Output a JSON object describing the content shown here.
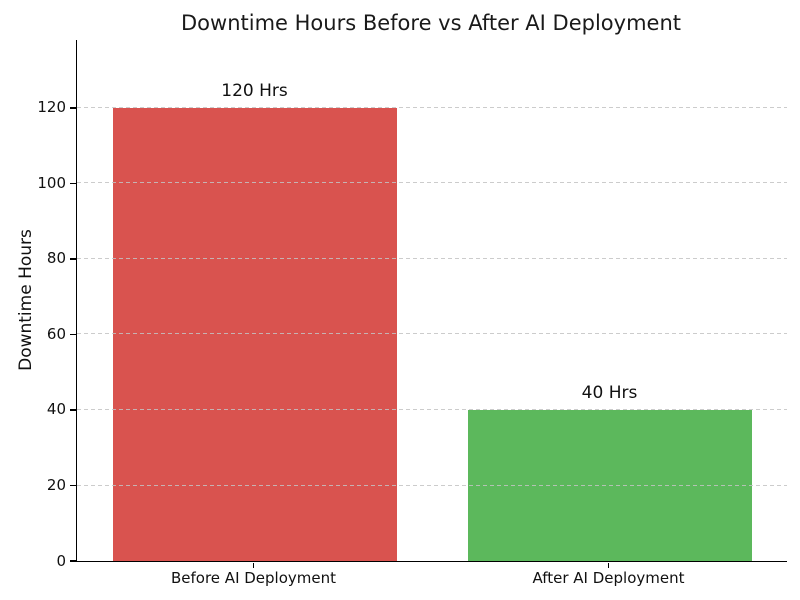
{
  "chart_data": {
    "type": "bar",
    "title": "Downtime Hours Before vs After AI Deployment",
    "xlabel": "",
    "ylabel": "Downtime Hours",
    "categories": [
      "Before AI Deployment",
      "After AI Deployment"
    ],
    "values": [
      120,
      40
    ],
    "bar_labels": [
      "120 Hrs",
      "40 Hrs"
    ],
    "bar_names": [
      "bar-before-ai-deployment",
      "bar-after-ai-deployment"
    ],
    "bar_colors": [
      "#d9534f",
      "#5cb85c"
    ],
    "ylim": [
      0,
      138
    ],
    "yticks": [
      0,
      20,
      40,
      60,
      80,
      100,
      120
    ],
    "grid": "horizontal dashed",
    "grid_color": "#c3c3c3",
    "spine_color": "#000000",
    "background_color": "#ffffff",
    "legend": "none"
  }
}
